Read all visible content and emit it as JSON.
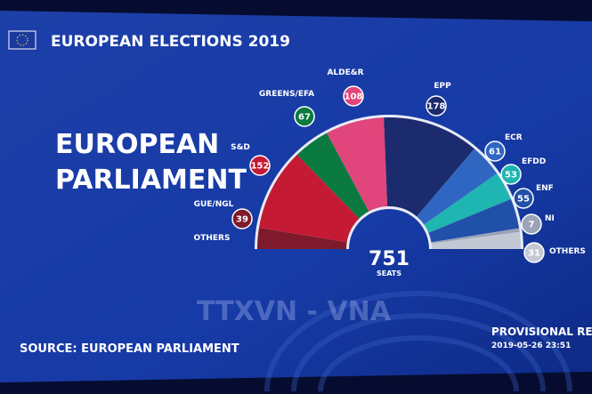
{
  "header": "EUROPEAN ELECTIONS 2019",
  "chart_data": {
    "type": "parliament",
    "title": "EUROPEAN PARLIAMENT",
    "categories": [
      "GUE/NGL",
      "S&D",
      "GREENS/EFA",
      "ALDE&R",
      "EPP",
      "ECR",
      "EFDD",
      "ENF",
      "NI",
      "OTHERS"
    ],
    "values": [
      39,
      152,
      67,
      108,
      178,
      61,
      53,
      55,
      7,
      31
    ],
    "colors": [
      "#7e1a2c",
      "#c41a33",
      "#0b7a40",
      "#e0457b",
      "#1c2a6e",
      "#2f66c2",
      "#1fb5b0",
      "#2150a8",
      "#9aa4b8",
      "#c3c9d4"
    ],
    "left_label": "OTHERS",
    "total": 751,
    "total_label": "SEATS"
  },
  "footer": {
    "source": "SOURCE: EUROPEAN PARLIAMENT",
    "status": "PROVISIONAL RESULTS",
    "timestamp": "2019-05-26 23:51"
  },
  "watermark": "TTXVN - VNA"
}
